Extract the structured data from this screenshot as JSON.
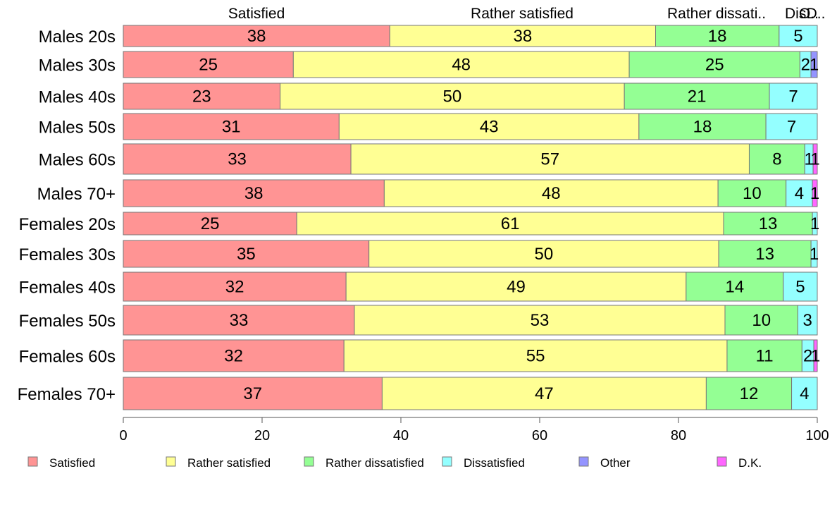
{
  "chart_data": {
    "type": "bar",
    "orientation": "horizontal",
    "stacked": true,
    "categories": [
      "Males 20s",
      "Males 30s",
      "Males 40s",
      "Males 50s",
      "Males 60s",
      "Males 70+",
      "Females 20s",
      "Females 30s",
      "Females 40s",
      "Females 50s",
      "Females 60s",
      "Females 70+"
    ],
    "series": [
      {
        "name": "Satisfied",
        "color": "#FF9494",
        "values": [
          38.4,
          24.5,
          22.6,
          31.1,
          32.8,
          37.6,
          25.0,
          35.4,
          32.1,
          33.3,
          31.8,
          37.3
        ]
      },
      {
        "name": "Rather satisfied",
        "color": "#FFFF94",
        "values": [
          38.3,
          48.4,
          49.6,
          43.2,
          57.4,
          48.1,
          61.5,
          50.4,
          49.0,
          53.4,
          55.2,
          46.7
        ]
      },
      {
        "name": "Rather dissatisfied",
        "color": "#94FF94",
        "values": [
          17.8,
          24.6,
          20.9,
          18.3,
          8.0,
          9.8,
          12.8,
          13.3,
          14.0,
          10.5,
          10.8,
          12.3
        ]
      },
      {
        "name": "Dissatisfied",
        "color": "#94FFFF",
        "values": [
          5.5,
          1.6,
          6.9,
          7.4,
          1.2,
          3.8,
          0.7,
          0.9,
          4.9,
          2.8,
          1.7,
          3.7
        ]
      },
      {
        "name": "Other",
        "color": "#9494FF",
        "values": [
          0.0,
          0.9,
          0.0,
          0.0,
          0.0,
          0.0,
          0.0,
          0.0,
          0.0,
          0.0,
          0.0,
          0.0
        ]
      },
      {
        "name": "D.K.",
        "color": "#FF66FF",
        "values": [
          0.0,
          0.0,
          0.0,
          0.0,
          0.6,
          0.7,
          0.0,
          0.0,
          0.0,
          0.0,
          0.5,
          0.0
        ]
      }
    ],
    "data_labels": [
      [
        "38",
        "38",
        "18",
        "5",
        "",
        ""
      ],
      [
        "25",
        "48",
        "25",
        "2",
        "1",
        ""
      ],
      [
        "23",
        "50",
        "21",
        "7",
        "",
        ""
      ],
      [
        "31",
        "43",
        "18",
        "7",
        "",
        ""
      ],
      [
        "33",
        "57",
        "8",
        "1",
        "",
        "1"
      ],
      [
        "38",
        "48",
        "10",
        "4",
        "",
        "1"
      ],
      [
        "25",
        "61",
        "13",
        "1",
        "",
        ""
      ],
      [
        "35",
        "50",
        "13",
        "1",
        "",
        ""
      ],
      [
        "32",
        "49",
        "14",
        "5",
        "",
        ""
      ],
      [
        "33",
        "53",
        "10",
        "3",
        "",
        ""
      ],
      [
        "32",
        "55",
        "11",
        "2",
        "",
        "1"
      ],
      [
        "37",
        "47",
        "12",
        "4",
        "",
        ""
      ]
    ],
    "top_labels": [
      "Satisfied",
      "Rather satisfied",
      "Rather dissati..",
      "Dis..",
      "O..",
      "D.."
    ],
    "xlim": [
      0,
      100
    ],
    "xticks": [
      "0",
      "20",
      "40",
      "60",
      "80",
      "100"
    ],
    "grid": false,
    "legend_position": "bottom"
  }
}
